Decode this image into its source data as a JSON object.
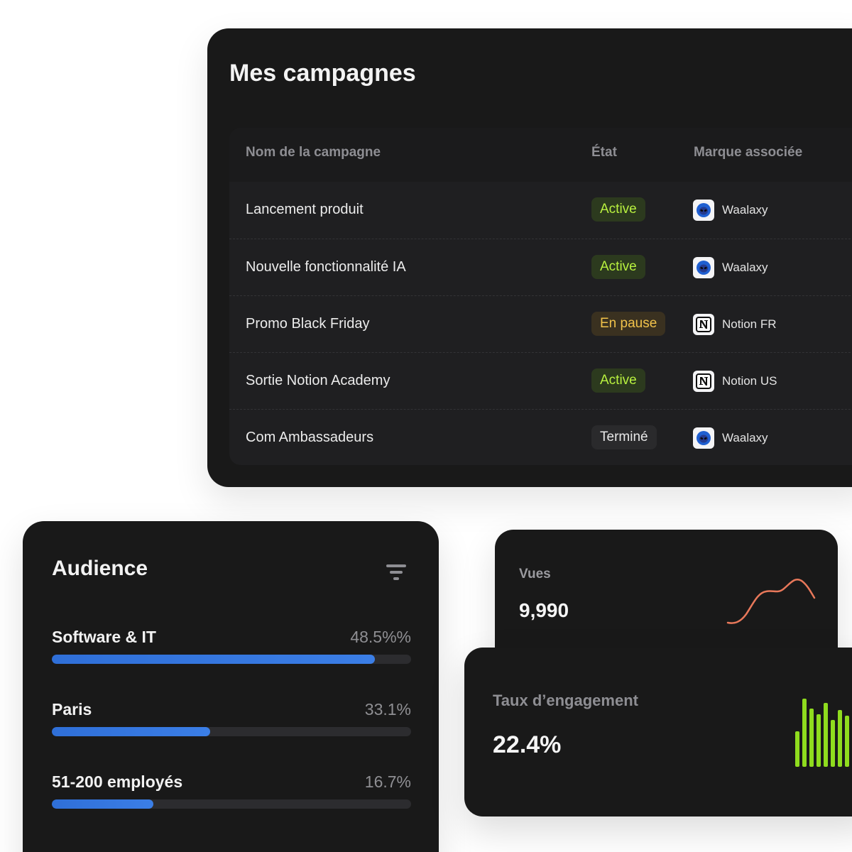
{
  "campaigns": {
    "title": "Mes campagnes",
    "headers": {
      "name": "Nom de la campagne",
      "state": "État",
      "brand": "Marque associée"
    },
    "rows": [
      {
        "name": "Lancement produit",
        "state": "Active",
        "state_kind": "active",
        "brand": "Waalaxy",
        "brand_icon": "alien-icon"
      },
      {
        "name": "Nouvelle fonctionnalité IA",
        "state": "Active",
        "state_kind": "active",
        "brand": "Waalaxy",
        "brand_icon": "alien-icon"
      },
      {
        "name": "Promo Black Friday",
        "state": "En pause",
        "state_kind": "paused",
        "brand": "Notion FR",
        "brand_icon": "notion-icon"
      },
      {
        "name": "Sortie Notion Academy",
        "state": "Active",
        "state_kind": "active",
        "brand": "Notion US",
        "brand_icon": "notion-icon"
      },
      {
        "name": "Com Ambassadeurs",
        "state": "Terminé",
        "state_kind": "done",
        "brand": "Waalaxy",
        "brand_icon": "alien-icon"
      }
    ]
  },
  "audience": {
    "title": "Audience",
    "filter_icon": "filter-icon",
    "items": [
      {
        "label": "Software & IT",
        "value": "48.5%%",
        "fraction": 0.9
      },
      {
        "label": "Paris",
        "value": "33.1%",
        "fraction": 0.44
      },
      {
        "label": "51-200 employés",
        "value": "16.7%",
        "fraction": 0.283
      }
    ]
  },
  "views": {
    "label": "Vues",
    "value": "9,990",
    "sparkline_color": "#e8785a"
  },
  "engagement": {
    "label": "Taux d’engagement",
    "value": "22.4%",
    "bars_color": "#8fdc1e"
  },
  "colors": {
    "card_bg": "#191919",
    "active_text": "#b9f23f",
    "paused_text": "#f1c24a",
    "bar_fill": "#2f6fd8"
  }
}
